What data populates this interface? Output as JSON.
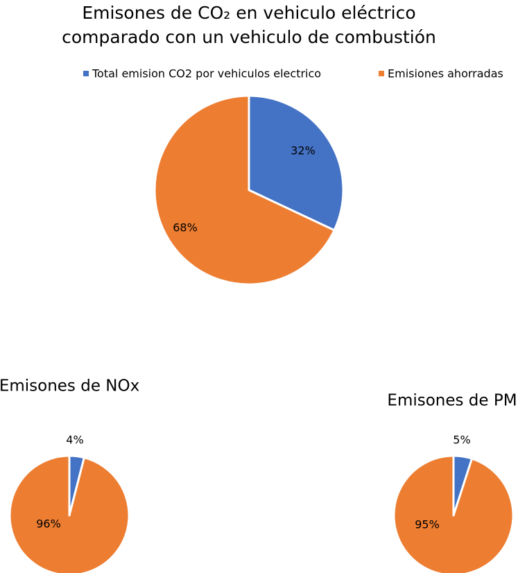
{
  "chart_data": [
    {
      "type": "pie",
      "title": [
        "Emisones de CO₂ en vehiculo eléctrico",
        "comparado con un vehiculo de combustión"
      ],
      "categories": [
        "Total emision CO2 por vehiculos electrico",
        "Emisiones ahorradas"
      ],
      "values": [
        32,
        68
      ],
      "value_labels": [
        "32%",
        "68%"
      ],
      "colors": [
        "#4472c4",
        "#ed7d31"
      ],
      "legend": "top"
    },
    {
      "type": "pie",
      "title": "Emisones de NOx",
      "values": [
        4,
        96
      ],
      "value_labels": [
        "4%",
        "96%"
      ],
      "colors": [
        "#4472c4",
        "#ed7d31"
      ]
    },
    {
      "type": "pie",
      "title": "Emisones de PM",
      "values": [
        5,
        95
      ],
      "value_labels": [
        "5%",
        "95%"
      ],
      "colors": [
        "#4472c4",
        "#ed7d31"
      ]
    }
  ]
}
